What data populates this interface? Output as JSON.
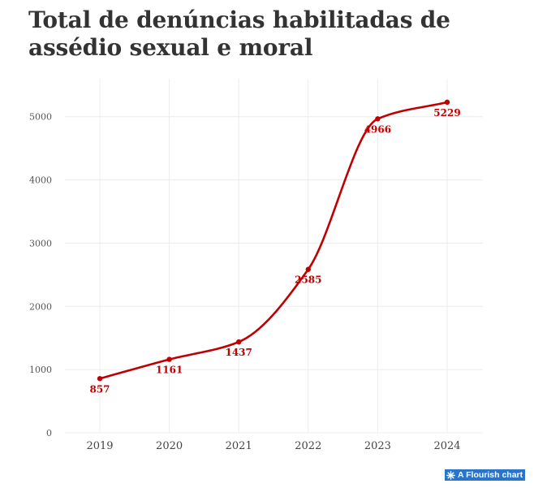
{
  "title": "Total de denúncias habilitadas de assédio sexual e moral",
  "credit": "A Flourish chart",
  "chart_data": {
    "type": "line",
    "title": "Total de denúncias habilitadas de assédio sexual e moral",
    "xlabel": "",
    "ylabel": "",
    "categories": [
      "2019",
      "2020",
      "2021",
      "2022",
      "2023",
      "2024"
    ],
    "series": [
      {
        "values": [
          857,
          1161,
          1437,
          2585,
          4966,
          5229
        ],
        "color": "#c00000"
      }
    ],
    "data_labels": [
      "857",
      "1161",
      "1437",
      "2585",
      "4966",
      "5229"
    ],
    "ylim": [
      0,
      5600
    ],
    "yticks": [
      "0",
      "1000",
      "2000",
      "3000",
      "4000",
      "5000"
    ],
    "ytick_values": [
      0,
      1000,
      2000,
      3000,
      4000,
      5000
    ],
    "grid": true,
    "legend": "none",
    "curve": "smooth",
    "colors": {
      "series": "#c00000",
      "grid": "#ececec",
      "text": "#333333",
      "credit_bg": "#2a74c9"
    }
  },
  "icons": {
    "credit": "flourish-logo-icon"
  }
}
